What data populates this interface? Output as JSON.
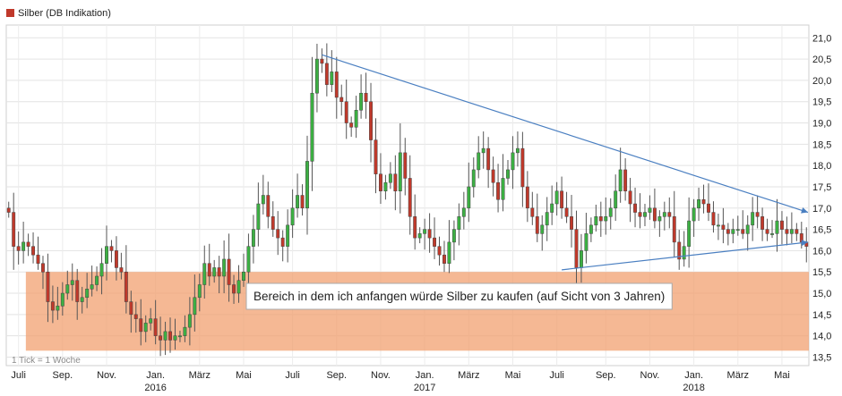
{
  "chart_data": {
    "type": "candlestick",
    "title": "",
    "xlabel": "",
    "ylabel": "",
    "legend": {
      "label": "Silber (DB Indikation)",
      "color": "#c0392b",
      "placement": "top-left"
    },
    "note": "1 Tick = 1 Woche",
    "ylim": [
      13.3,
      21.3
    ],
    "y_ticks": [
      "13,5",
      "14,0",
      "14,5",
      "15,0",
      "15,5",
      "16,0",
      "16,5",
      "17,0",
      "17,5",
      "18,0",
      "18,5",
      "19,0",
      "19,5",
      "20,0",
      "20,5",
      "21,0"
    ],
    "y_tick_values": [
      13.5,
      14.0,
      14.5,
      15.0,
      15.5,
      16.0,
      16.5,
      17.0,
      17.5,
      18.0,
      18.5,
      19.0,
      19.5,
      20.0,
      20.5,
      21.0
    ],
    "grid": true,
    "x_axis": {
      "month_labels": [
        "Juli",
        "Sep.",
        "Nov.",
        "Jan.",
        "März",
        "Mai",
        "Juli",
        "Sep.",
        "Nov.",
        "Jan.",
        "März",
        "Mai",
        "Juli",
        "Sep.",
        "Nov.",
        "Jan.",
        "März",
        "Mai"
      ],
      "month_weeks": [
        2,
        11,
        20,
        30,
        39,
        48,
        58,
        67,
        76,
        85,
        94,
        103,
        112,
        122,
        131,
        140,
        149,
        158
      ],
      "year_labels": [
        "2016",
        "2017",
        "2018"
      ],
      "year_weeks": [
        30,
        85,
        140
      ],
      "week_count": 164
    },
    "series": {
      "up_color": "#3cb043",
      "down_color": "#c0392b",
      "closes": [
        16.9,
        16.1,
        16.0,
        16.2,
        16.1,
        15.9,
        15.7,
        15.5,
        14.8,
        14.6,
        14.7,
        15.0,
        15.2,
        15.3,
        14.8,
        14.9,
        15.1,
        15.2,
        15.4,
        15.7,
        16.1,
        16.0,
        15.6,
        15.5,
        14.8,
        14.5,
        14.4,
        14.1,
        14.3,
        14.4,
        14.0,
        13.9,
        14.1,
        13.9,
        14.0,
        14.0,
        14.2,
        14.5,
        14.9,
        15.2,
        15.7,
        15.4,
        15.6,
        15.4,
        15.8,
        15.2,
        15.0,
        15.3,
        15.5,
        16.1,
        16.5,
        17.1,
        17.3,
        16.8,
        16.5,
        16.3,
        16.1,
        16.6,
        17.0,
        17.3,
        17.0,
        18.1,
        19.7,
        20.5,
        20.4,
        19.9,
        20.2,
        19.6,
        19.5,
        19.0,
        18.9,
        19.3,
        19.7,
        19.5,
        18.6,
        17.8,
        17.4,
        17.6,
        17.8,
        17.4,
        18.3,
        17.7,
        16.8,
        16.3,
        16.4,
        16.5,
        16.3,
        16.1,
        15.9,
        15.7,
        16.2,
        16.5,
        16.8,
        17.0,
        17.5,
        17.9,
        18.3,
        18.4,
        17.9,
        17.6,
        17.2,
        17.7,
        17.9,
        18.3,
        18.4,
        17.5,
        17.0,
        16.8,
        16.4,
        16.6,
        16.9,
        17.1,
        17.4,
        17.0,
        16.8,
        16.5,
        15.6,
        16.0,
        16.4,
        16.6,
        16.8,
        16.7,
        16.8,
        17.0,
        17.4,
        17.9,
        17.4,
        17.1,
        16.9,
        16.8,
        16.9,
        17.0,
        16.7,
        16.8,
        16.9,
        16.8,
        16.2,
        15.8,
        16.1,
        16.7,
        17.0,
        17.2,
        17.1,
        16.9,
        16.6,
        16.6,
        16.5,
        16.4,
        16.5,
        16.5,
        16.4,
        16.6,
        16.9,
        16.8,
        16.5,
        16.4,
        16.4,
        16.7,
        16.5,
        16.4,
        16.5,
        16.4,
        16.2,
        16.1
      ],
      "opens": [
        17.0,
        16.9,
        16.1,
        16.0,
        16.2,
        16.1,
        15.9,
        15.7,
        15.5,
        14.8,
        14.6,
        14.7,
        15.0,
        15.2,
        15.3,
        14.8,
        14.9,
        15.1,
        15.2,
        15.4,
        15.7,
        16.1,
        16.0,
        15.6,
        15.5,
        14.8,
        14.5,
        14.4,
        14.1,
        14.3,
        14.4,
        14.0,
        13.9,
        14.1,
        13.9,
        14.0,
        14.0,
        14.2,
        14.5,
        14.9,
        15.2,
        15.7,
        15.4,
        15.6,
        15.4,
        15.8,
        15.2,
        15.0,
        15.3,
        15.5,
        16.1,
        16.5,
        17.1,
        17.3,
        16.8,
        16.5,
        16.3,
        16.1,
        16.6,
        17.0,
        17.3,
        17.0,
        18.1,
        19.7,
        20.5,
        20.4,
        19.9,
        20.2,
        19.6,
        19.5,
        19.0,
        18.9,
        19.3,
        19.7,
        19.5,
        18.6,
        17.8,
        17.4,
        17.6,
        17.8,
        17.4,
        18.3,
        17.7,
        16.8,
        16.3,
        16.4,
        16.5,
        16.3,
        16.1,
        15.9,
        15.7,
        16.2,
        16.5,
        16.8,
        17.0,
        17.5,
        17.9,
        18.3,
        18.4,
        17.9,
        17.6,
        17.2,
        17.7,
        17.9,
        18.3,
        18.4,
        17.5,
        17.0,
        16.8,
        16.4,
        16.6,
        16.9,
        17.1,
        17.4,
        17.0,
        16.8,
        16.5,
        15.6,
        16.0,
        16.4,
        16.6,
        16.8,
        16.7,
        16.8,
        17.0,
        17.4,
        17.9,
        17.4,
        17.1,
        16.9,
        16.8,
        16.9,
        17.0,
        16.7,
        16.8,
        16.9,
        16.8,
        16.2,
        15.8,
        16.1,
        16.7,
        17.0,
        17.2,
        17.1,
        16.9,
        16.6,
        16.6,
        16.5,
        16.4,
        16.5,
        16.5,
        16.4,
        16.6,
        16.9,
        16.8,
        16.5,
        16.4,
        16.4,
        16.7,
        16.5,
        16.4,
        16.5,
        16.4,
        16.2
      ]
    },
    "trend_lines": [
      {
        "from": [
          64,
          20.6
        ],
        "to": [
          164,
          16.9
        ],
        "color": "#4a7fc1"
      },
      {
        "from": [
          113,
          15.55
        ],
        "to": [
          164,
          16.2
        ],
        "color": "#4a7fc1"
      }
    ],
    "zone": {
      "y_low": 13.65,
      "y_high": 15.5,
      "week_from": 4,
      "week_to": 164,
      "color": "#f2a070"
    },
    "annotation": {
      "text": "Bereich in dem ich anfangen würde Silber zu kaufen (auf Sicht von 3 Jahren)",
      "x_week": 49,
      "y": 14.5
    }
  }
}
